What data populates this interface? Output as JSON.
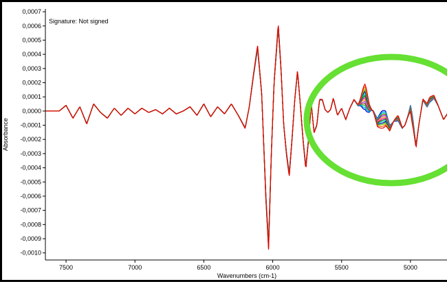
{
  "signature": "Signature: Not signed",
  "chart_data": {
    "type": "line",
    "title": "",
    "xlabel": "Wavenumbers (cm-1)",
    "ylabel": "Absorbance",
    "xlim": [
      7650,
      4720
    ],
    "ylim": [
      -0.00105,
      0.00072
    ],
    "x_reversed": true,
    "grid": false,
    "legend": "none",
    "x_ticks": [
      {
        "value": 7500,
        "label": "7500"
      },
      {
        "value": 7000,
        "label": "7000"
      },
      {
        "value": 6500,
        "label": "6500"
      },
      {
        "value": 6000,
        "label": "6000"
      },
      {
        "value": 5500,
        "label": "5500"
      },
      {
        "value": 5000,
        "label": "5000"
      }
    ],
    "y_ticks": [
      {
        "value": 0.0007,
        "label": "0,0007"
      },
      {
        "value": 0.0006,
        "label": "0,0006"
      },
      {
        "value": 0.0005,
        "label": "0,0005"
      },
      {
        "value": 0.0004,
        "label": "0,0004"
      },
      {
        "value": 0.0003,
        "label": "0,0003"
      },
      {
        "value": 0.0002,
        "label": "0,0002"
      },
      {
        "value": 0.0001,
        "label": "0,0001"
      },
      {
        "value": 0.0,
        "label": "0,0000"
      },
      {
        "value": -0.0001,
        "label": "-0,0001"
      },
      {
        "value": -0.0002,
        "label": "-0,0002"
      },
      {
        "value": -0.0003,
        "label": "-0,0003"
      },
      {
        "value": -0.0004,
        "label": "-0,0004"
      },
      {
        "value": -0.0005,
        "label": "-0,0005"
      },
      {
        "value": -0.0006,
        "label": "-0,0006"
      },
      {
        "value": -0.0007,
        "label": "-0,0007"
      },
      {
        "value": -0.0008,
        "label": "-0,0008"
      },
      {
        "value": -0.0009,
        "label": "-0,0009"
      },
      {
        "value": -0.001,
        "label": "-0,0010"
      }
    ],
    "base_spectrum": {
      "x": [
        7650,
        7550,
        7500,
        7450,
        7400,
        7350,
        7300,
        7250,
        7200,
        7150,
        7100,
        7050,
        7000,
        6950,
        6900,
        6850,
        6800,
        6750,
        6700,
        6650,
        6600,
        6550,
        6500,
        6450,
        6400,
        6350,
        6300,
        6250,
        6200,
        6170,
        6140,
        6110,
        6080,
        6050,
        6030,
        6010,
        5990,
        5960,
        5940,
        5920,
        5900,
        5880,
        5860,
        5840,
        5820,
        5800,
        5780,
        5760,
        5740,
        5720,
        5700,
        5680,
        5660,
        5640,
        5620,
        5600,
        5580,
        5560,
        5530,
        5500,
        5470,
        5440,
        5410,
        5380,
        5350,
        5330,
        5300,
        5270,
        5240,
        5210,
        5180,
        5150,
        5120,
        5090,
        5060,
        5040,
        5020,
        5000,
        4980,
        4960,
        4940,
        4910,
        4880,
        4860,
        4830,
        4800,
        4760,
        4720
      ],
      "y": [
        0.0,
        0.0,
        4e-05,
        -5e-05,
        3e-05,
        -9e-05,
        5e-05,
        -1e-05,
        -5e-05,
        2e-05,
        -3e-05,
        2e-05,
        -2e-05,
        2e-05,
        -1e-05,
        1e-05,
        -2e-05,
        2e-05,
        -2e-05,
        0.0,
        3e-05,
        -3e-05,
        5e-05,
        -4e-05,
        3e-05,
        -2e-05,
        5e-05,
        -3e-05,
        -0.00012,
        3e-05,
        0.00025,
        0.00045,
        0.00012,
        -0.0006,
        -0.00095,
        -0.0003,
        0.0002,
        0.0006,
        0.0003,
        -0.0001,
        -0.0003,
        -0.00045,
        -0.0002,
        8e-05,
        0.00028,
        5e-05,
        -0.0002,
        -0.0004,
        -0.0002,
        5e-05,
        -0.00015,
        -0.0001,
        8e-05,
        8e-05,
        1e-05,
        -1e-05,
        1e-05,
        9e-05,
        -3e-05,
        2e-05,
        -6e-05,
        2e-05,
        8e-05,
        4e-05,
        8e-05,
        0.0001,
        2e-05,
        0.0,
        -8e-05,
        -6e-05,
        -5e-05,
        -0.00012,
        -7e-05,
        -5e-05,
        -0.00012,
        -0.0001,
        -4e-05,
        2e-05,
        -0.0001,
        -0.00025,
        -0.0001,
        8e-05,
        4e-05,
        8e-05,
        0.0001,
        4e-05,
        -6e-05,
        0.0
      ]
    },
    "variation_window": [
      5650,
      4800
    ],
    "series": [
      {
        "color": "#0000cc",
        "offset": 0.0
      },
      {
        "color": "#00a0ff",
        "offset": 0.08
      },
      {
        "color": "#00cc66",
        "offset": 0.16
      },
      {
        "color": "#8b4513",
        "offset": 0.24
      },
      {
        "color": "#9b30ff",
        "offset": 0.32
      },
      {
        "color": "#ffaa00",
        "offset": 0.4
      },
      {
        "color": "#ff00aa",
        "offset": 0.48
      },
      {
        "color": "#006400",
        "offset": 0.56
      },
      {
        "color": "#00cccc",
        "offset": 0.64
      },
      {
        "color": "#000080",
        "offset": 0.72
      },
      {
        "color": "#66cc00",
        "offset": 0.8
      },
      {
        "color": "#ff6600",
        "offset": 0.9
      },
      {
        "color": "#dd0000",
        "offset": 1.0
      }
    ],
    "annotation": {
      "shape": "ellipse",
      "color": "#66e033"
    }
  }
}
